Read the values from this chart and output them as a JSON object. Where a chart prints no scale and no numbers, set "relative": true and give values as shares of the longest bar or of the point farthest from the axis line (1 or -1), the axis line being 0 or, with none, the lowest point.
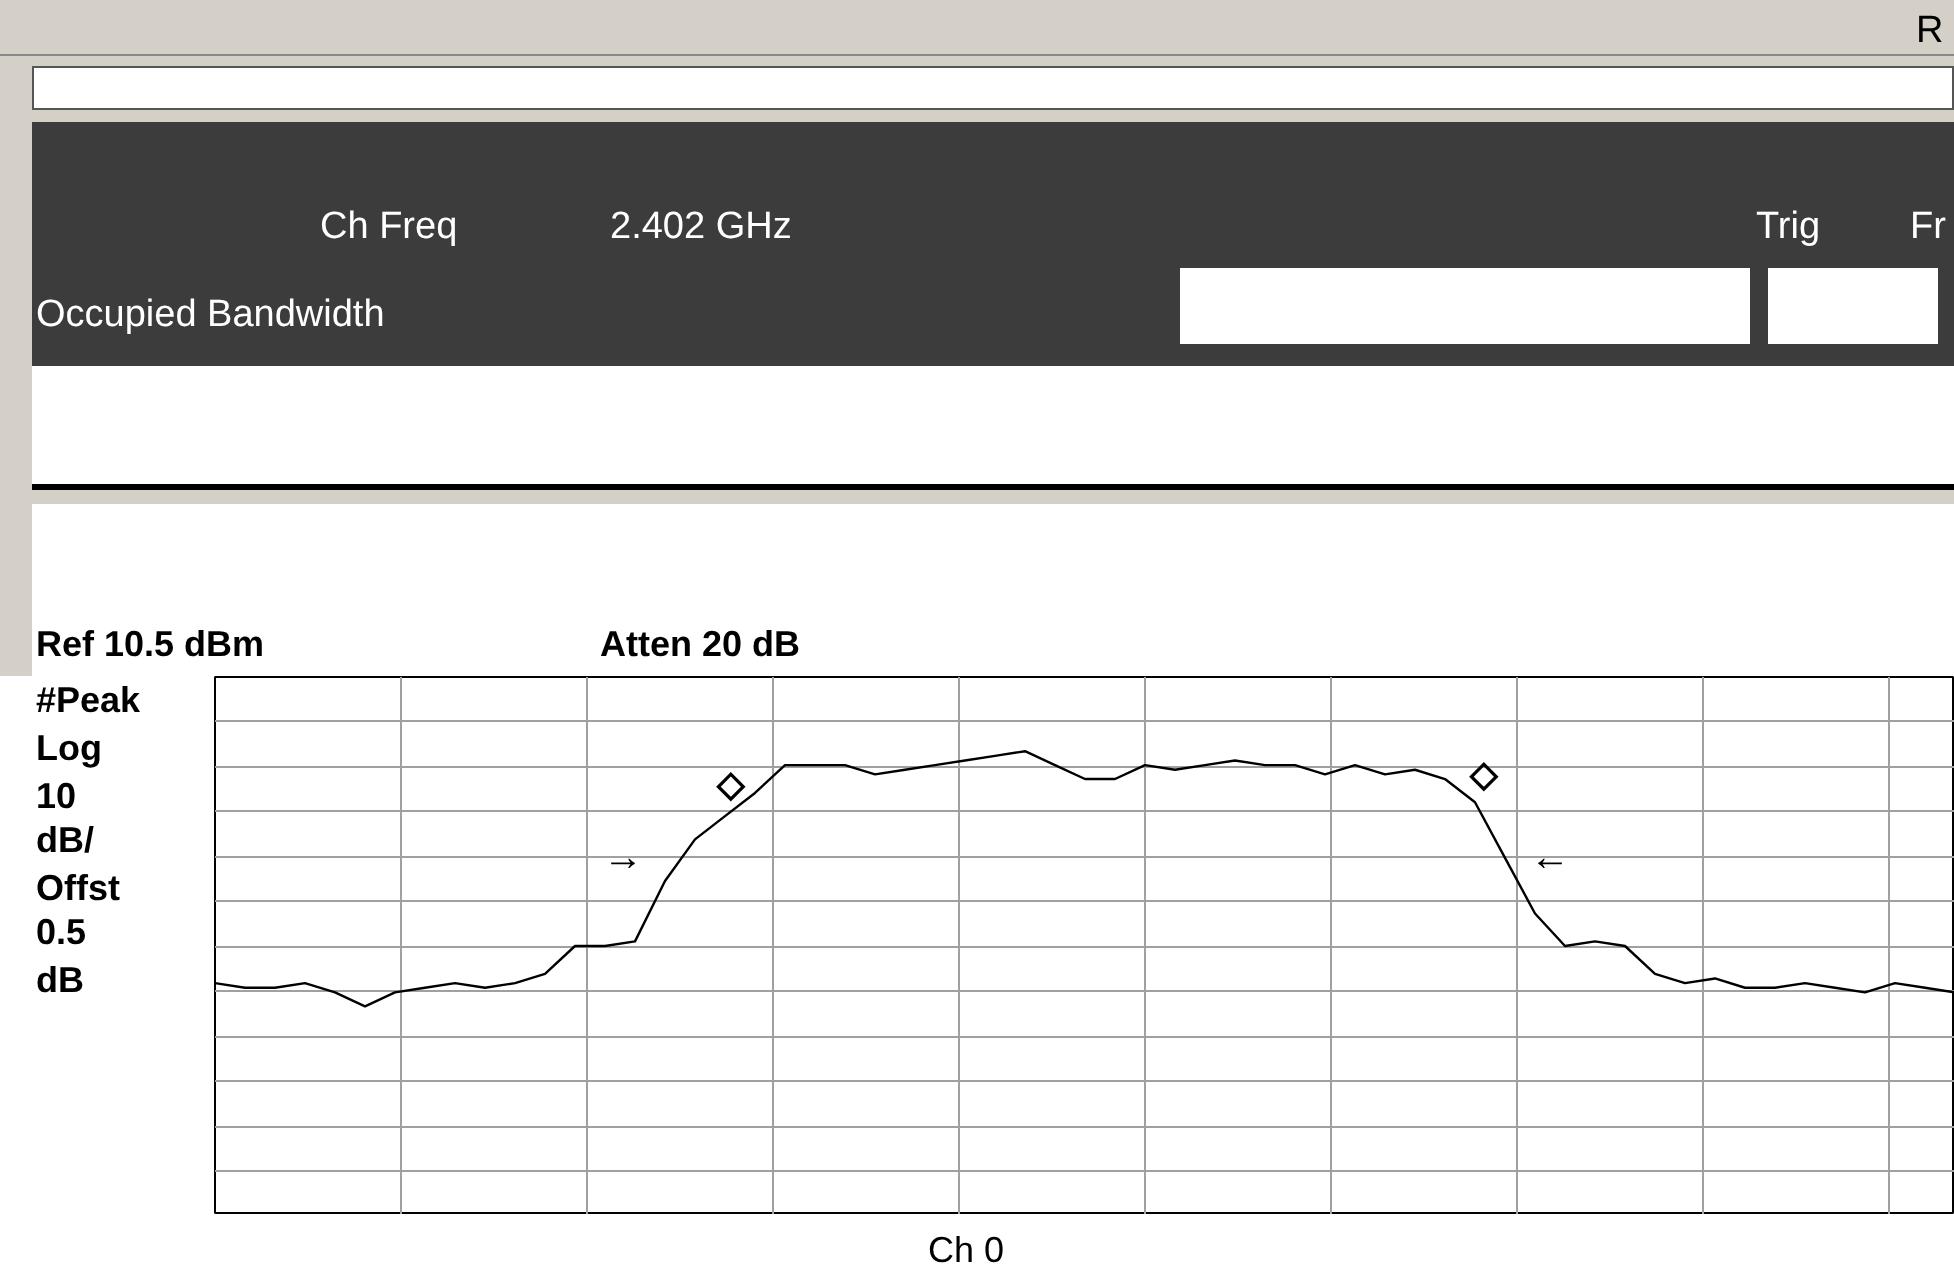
{
  "chart_data": {
    "type": "line",
    "relative": true,
    "grid": true,
    "categories": [
      null,
      null,
      null,
      null,
      null,
      null,
      null,
      null,
      null,
      null,
      null,
      null,
      null,
      null,
      null,
      null,
      null,
      null,
      null,
      null,
      null,
      null,
      null,
      null,
      null,
      null,
      null,
      null,
      null,
      null,
      null,
      null,
      null,
      null,
      null,
      null,
      null,
      null,
      null,
      null,
      null,
      null,
      null,
      null,
      null,
      null,
      null,
      null,
      null,
      null,
      null,
      null,
      null,
      null,
      null,
      null,
      null,
      null,
      null
    ],
    "series": [
      {
        "type": "line",
        "color": "#000000",
        "values": [
          0.5,
          0.49,
          0.49,
          0.5,
          0.48,
          0.45,
          0.48,
          0.49,
          0.5,
          0.49,
          0.5,
          0.52,
          0.58,
          0.58,
          0.59,
          0.72,
          0.81,
          0.86,
          0.91,
          0.97,
          0.97,
          0.97,
          0.95,
          0.96,
          0.97,
          0.98,
          0.99,
          1,
          0.97,
          0.94,
          0.94,
          0.97,
          0.96,
          0.97,
          0.98,
          0.97,
          0.97,
          0.95,
          0.97,
          0.95,
          0.96,
          0.94,
          0.89,
          0.77,
          0.65,
          0.58,
          0.59,
          0.58,
          0.52,
          0.5,
          0.51,
          0.49,
          0.49,
          0.5,
          0.49,
          0.48,
          0.5,
          0.49,
          0.48
        ]
      }
    ],
    "annotations": [
      "R",
      "Ch Freq",
      "2.402 GHz",
      "Trig",
      "Fr",
      "Occupied Bandwidth",
      "Ref 10.5 dBm",
      "Atten 20 dB",
      "#Peak",
      "Log",
      "10",
      "dB/",
      "Offst",
      "0.5",
      "dB",
      "→",
      "←",
      "Ch 0",
      "◇",
      "◇"
    ]
  }
}
